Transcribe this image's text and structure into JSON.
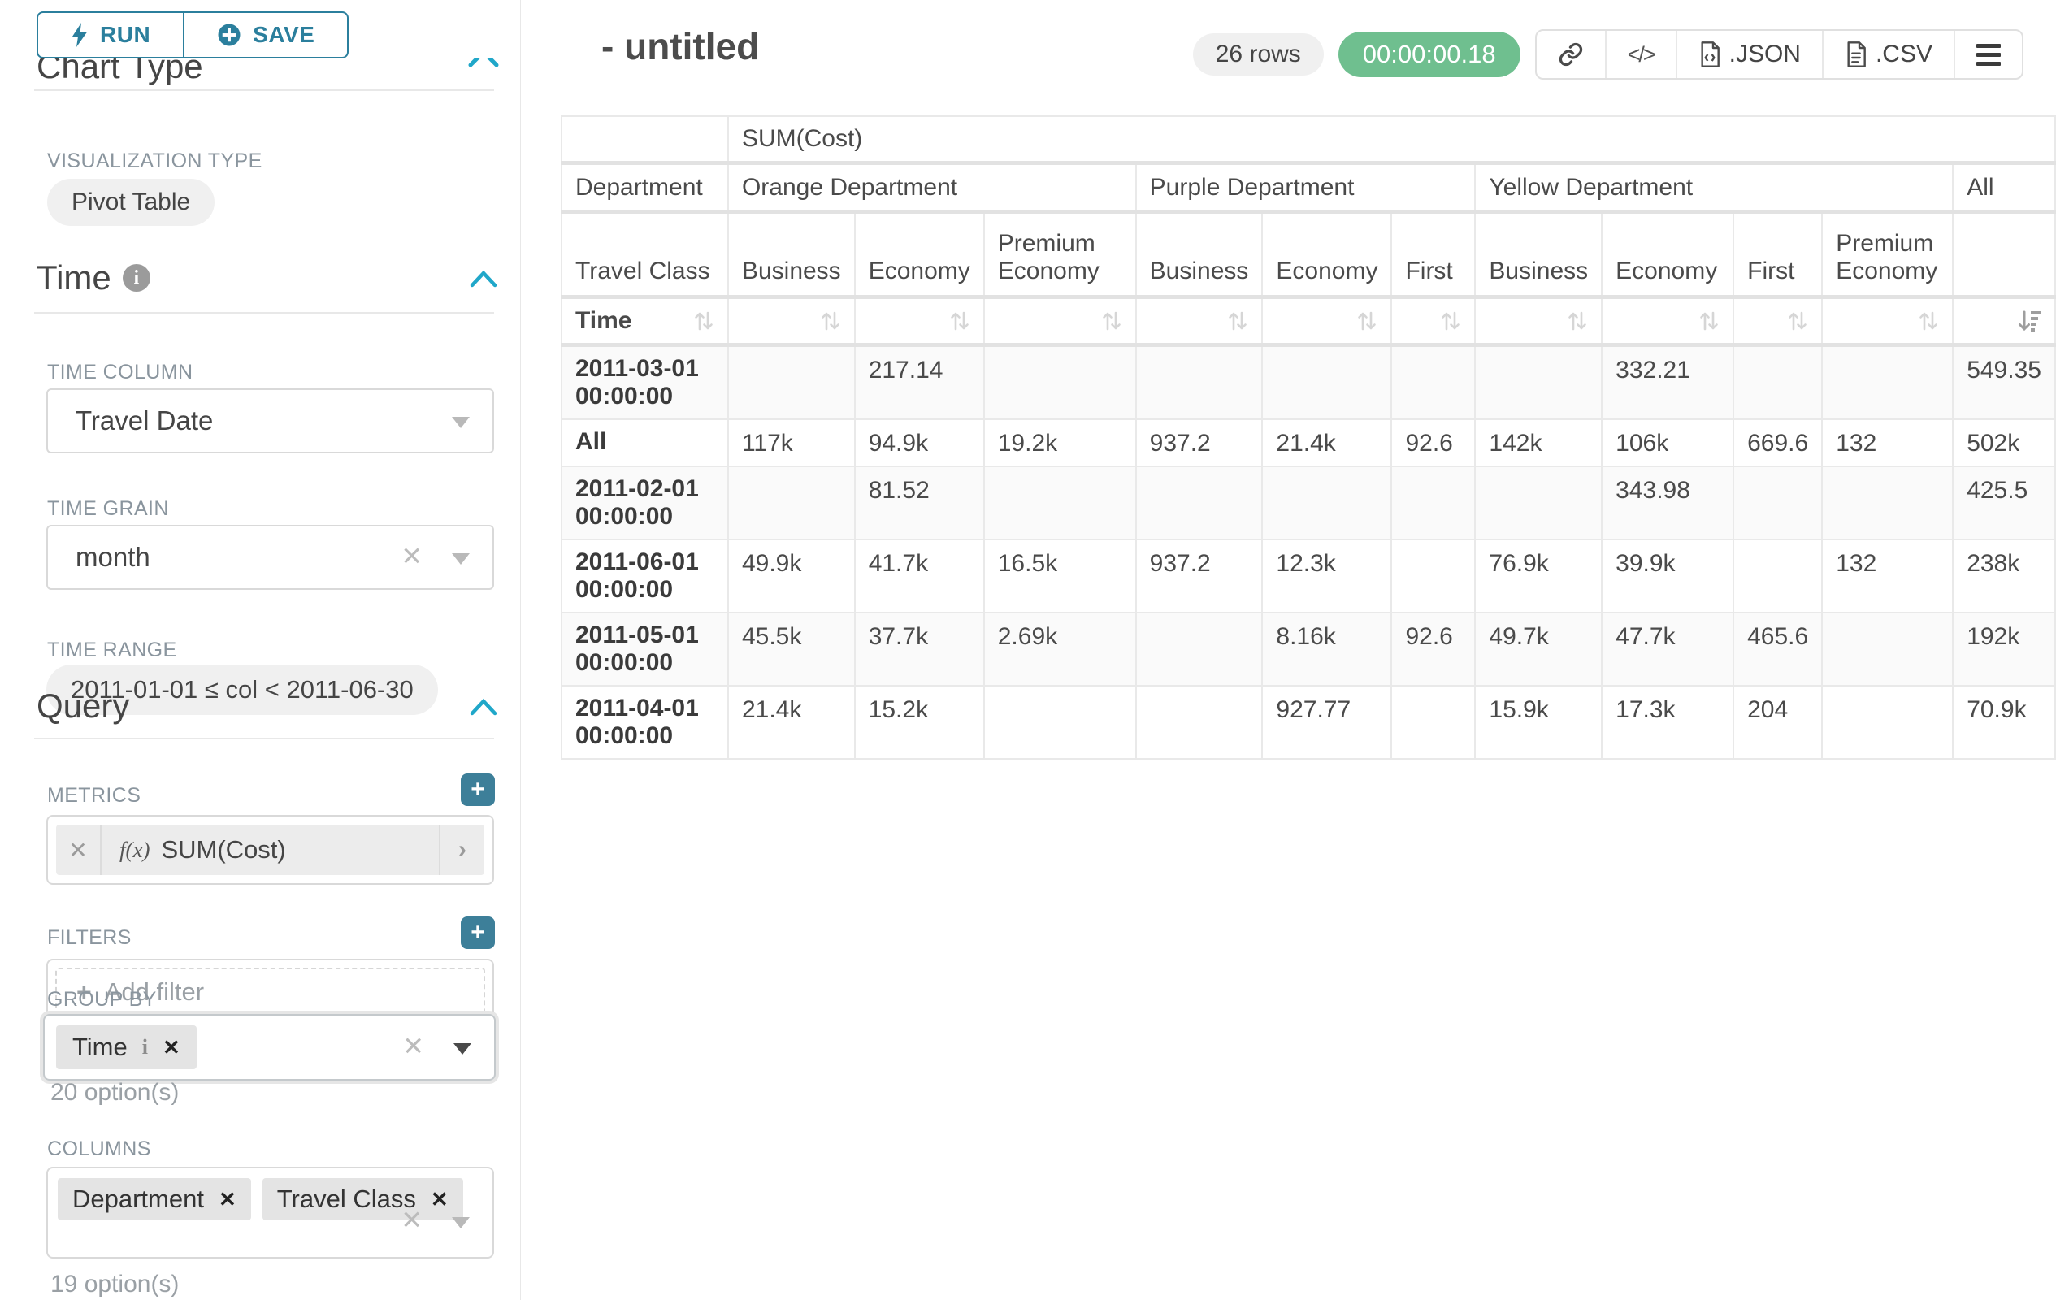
{
  "accent": {
    "teal": "#2b7f9d",
    "teal_bright": "#20a7c9",
    "plus_button": "#3d7f99",
    "timer_green": "#6fbf8f"
  },
  "toolbar": {
    "run_label": "RUN",
    "save_label": "SAVE"
  },
  "sidebar": {
    "chart_type_heading": "Chart Type",
    "visualization": {
      "label": "VISUALIZATION TYPE",
      "value": "Pivot Table"
    },
    "time_section": {
      "heading": "Time",
      "time_column_label": "TIME COLUMN",
      "time_column_value": "Travel Date",
      "time_grain_label": "TIME GRAIN",
      "time_grain_value": "month",
      "time_range_label": "TIME RANGE",
      "time_range_value": "2011-01-01 ≤ col < 2011-06-30"
    },
    "query_section": {
      "heading": "Query",
      "metrics_label": "METRICS",
      "metric_fx": "f(x)",
      "metric_value": "SUM(Cost)",
      "filters_label": "FILTERS",
      "add_filter_label": "Add filter",
      "group_by_label": "GROUP BY",
      "group_by_tags": [
        "Time"
      ],
      "group_by_hint": "20 option(s)",
      "columns_label": "COLUMNS",
      "columns_tags": [
        "Department",
        "Travel Class"
      ],
      "columns_hint": "19 option(s)"
    }
  },
  "header": {
    "title": "- untitled",
    "rows_badge": "26 rows",
    "timer_badge": "00:00:00.18",
    "json_label": ".JSON",
    "csv_label": ".CSV"
  },
  "chart_data": {
    "type": "table",
    "title": "SUM(Cost) pivot table",
    "metric_header": "SUM(Cost)",
    "row_dimension_labels": {
      "level1": "Department",
      "level2": "Travel Class",
      "rows": "Time"
    },
    "column_groups": [
      {
        "label": "Orange Department",
        "children": [
          "Business",
          "Economy",
          "Premium Economy"
        ]
      },
      {
        "label": "Purple Department",
        "children": [
          "Business",
          "Economy",
          "First"
        ]
      },
      {
        "label": "Yellow Department",
        "children": [
          "Business",
          "Economy",
          "First",
          "Premium Economy"
        ]
      },
      {
        "label": "All",
        "children": [
          ""
        ]
      }
    ],
    "sort": {
      "active_column_index": 10,
      "direction": "desc"
    },
    "rows": [
      {
        "label": "2011-03-01 00:00:00",
        "values": [
          "",
          "217.14",
          "",
          "",
          "",
          "",
          "",
          "332.21",
          "",
          "",
          "549.35"
        ]
      },
      {
        "label": "All",
        "values": [
          "117k",
          "94.9k",
          "19.2k",
          "937.2",
          "21.4k",
          "92.6",
          "142k",
          "106k",
          "669.6",
          "132",
          "502k"
        ]
      },
      {
        "label": "2011-02-01 00:00:00",
        "values": [
          "",
          "81.52",
          "",
          "",
          "",
          "",
          "",
          "343.98",
          "",
          "",
          "425.5"
        ]
      },
      {
        "label": "2011-06-01 00:00:00",
        "values": [
          "49.9k",
          "41.7k",
          "16.5k",
          "937.2",
          "12.3k",
          "",
          "76.9k",
          "39.9k",
          "",
          "132",
          "238k"
        ]
      },
      {
        "label": "2011-05-01 00:00:00",
        "values": [
          "45.5k",
          "37.7k",
          "2.69k",
          "",
          "8.16k",
          "92.6",
          "49.7k",
          "47.7k",
          "465.6",
          "",
          "192k"
        ]
      },
      {
        "label": "2011-04-01 00:00:00",
        "values": [
          "21.4k",
          "15.2k",
          "",
          "",
          "927.77",
          "",
          "15.9k",
          "17.3k",
          "204",
          "",
          "70.9k"
        ]
      }
    ]
  }
}
